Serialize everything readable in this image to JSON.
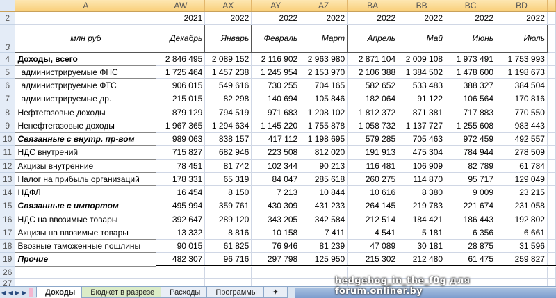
{
  "columns": {
    "row_header": "",
    "a": "A",
    "data": [
      "AW",
      "AX",
      "AY",
      "AZ",
      "BA",
      "BB",
      "BC",
      "BD"
    ]
  },
  "row2": {
    "num": "2",
    "years": [
      "2021",
      "2022",
      "2022",
      "2022",
      "2022",
      "2022",
      "2022",
      "2022"
    ]
  },
  "row3": {
    "num": "3",
    "label": "млн руб",
    "months": [
      "Декабрь",
      "Январь",
      "Февраль",
      "Март",
      "Апрель",
      "Май",
      "Июнь",
      "Июль"
    ]
  },
  "rows": [
    {
      "num": "4",
      "label": "Доходы, всего",
      "style": "b",
      "values": [
        "2 846 495",
        "2 089 152",
        "2 116 902",
        "2 963 980",
        "2 871 104",
        "2 009 108",
        "1 973 491",
        "1 753 993"
      ]
    },
    {
      "num": "5",
      "label": "администрируемые ФНС",
      "style": "ind",
      "values": [
        "1 725 464",
        "1 457 238",
        "1 245 954",
        "2 153 970",
        "2 106 388",
        "1 384 502",
        "1 478 600",
        "1 198 673"
      ]
    },
    {
      "num": "6",
      "label": "администрируемые ФТС",
      "style": "ind",
      "values": [
        "906 015",
        "549 616",
        "730 255",
        "704 165",
        "582 652",
        "533 483",
        "388 327",
        "384 504"
      ]
    },
    {
      "num": "7",
      "label": "администрируемые др.",
      "style": "ind",
      "values": [
        "215 015",
        "82 298",
        "140 694",
        "105 846",
        "182 064",
        "91 122",
        "106 564",
        "170 816"
      ]
    },
    {
      "num": "8",
      "label": "Нефтегазовые доходы",
      "style": "",
      "values": [
        "879 129",
        "794 519",
        "971 683",
        "1 208 102",
        "1 812 372",
        "871 381",
        "717 883",
        "770 550"
      ]
    },
    {
      "num": "9",
      "label": "Ненефтегазовые доходы",
      "style": "",
      "values": [
        "1 967 365",
        "1 294 634",
        "1 145 220",
        "1 755 878",
        "1 058 732",
        "1 137 727",
        "1 255 608",
        "983 443"
      ]
    },
    {
      "num": "10",
      "label": "Связанные с внутр. пр-вом",
      "style": "bi",
      "values": [
        "989 063",
        "838 157",
        "417 112",
        "1 198 695",
        "579 285",
        "705 463",
        "972 459",
        "492 557"
      ]
    },
    {
      "num": "11",
      "label": "НДС внутрений",
      "style": "",
      "values": [
        "715 827",
        "682 946",
        "223 508",
        "812 020",
        "191 913",
        "475 304",
        "784 944",
        "278 509"
      ]
    },
    {
      "num": "12",
      "label": "Акцизы внутренние",
      "style": "",
      "values": [
        "78 451",
        "81 742",
        "102 344",
        "90 213",
        "116 481",
        "106 909",
        "82 789",
        "61 784"
      ]
    },
    {
      "num": "13",
      "label": "Налог на прибыль организаций",
      "style": "",
      "values": [
        "178 331",
        "65 319",
        "84 047",
        "285 618",
        "260 275",
        "114 870",
        "95 717",
        "129 049"
      ]
    },
    {
      "num": "14",
      "label": "НДФЛ",
      "style": "",
      "values": [
        "16 454",
        "8 150",
        "7 213",
        "10 844",
        "10 616",
        "8 380",
        "9 009",
        "23 215"
      ]
    },
    {
      "num": "15",
      "label": "Связанные с импортом",
      "style": "bi",
      "values": [
        "495 994",
        "359 761",
        "430 309",
        "431 233",
        "264 145",
        "219 783",
        "221 674",
        "231 058"
      ]
    },
    {
      "num": "16",
      "label": "НДС на ввозимые товары",
      "style": "",
      "values": [
        "392 647",
        "289 120",
        "343 205",
        "342 584",
        "212 514",
        "184 421",
        "186 443",
        "192 802"
      ]
    },
    {
      "num": "17",
      "label": "Акцизы на ввозимые товары",
      "style": "",
      "values": [
        "13 332",
        "8 816",
        "10 158",
        "7 411",
        "4 541",
        "5 181",
        "6 356",
        "6 661"
      ]
    },
    {
      "num": "18",
      "label": "Ввозные таможенные пошлины",
      "style": "",
      "values": [
        "90 015",
        "61 825",
        "76 946",
        "81 239",
        "47 089",
        "30 181",
        "28 875",
        "31 596"
      ]
    },
    {
      "num": "19",
      "label": "Прочие",
      "style": "bi",
      "values": [
        "482 307",
        "96 716",
        "297 798",
        "125 950",
        "215 302",
        "212 480",
        "61 475",
        "259 827"
      ]
    }
  ],
  "empty_rows": [
    "26",
    "27"
  ],
  "sheet_tabs": [
    {
      "label": "Доходы",
      "active": true
    },
    {
      "label": "Бюджет в разрезе",
      "color": "#dcecc7"
    },
    {
      "label": "Расходы"
    },
    {
      "label": "Программы"
    }
  ],
  "watermark": "hedgehog_in_the_f0g для forum.onliner.by"
}
